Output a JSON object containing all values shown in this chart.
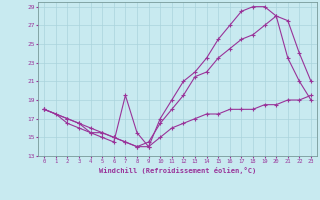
{
  "xlabel": "Windchill (Refroidissement éolien,°C)",
  "bg_color": "#c8eaf0",
  "line_color": "#993399",
  "grid_color": "#aad4dc",
  "xlim": [
    -0.5,
    23.5
  ],
  "ylim": [
    13,
    29.5
  ],
  "yticks": [
    13,
    15,
    17,
    19,
    21,
    23,
    25,
    27,
    29
  ],
  "xticks": [
    0,
    1,
    2,
    3,
    4,
    5,
    6,
    7,
    8,
    9,
    10,
    11,
    12,
    13,
    14,
    15,
    16,
    17,
    18,
    19,
    20,
    21,
    22,
    23
  ],
  "line1_x": [
    0,
    1,
    2,
    3,
    4,
    5,
    6,
    7,
    8,
    9,
    10,
    11,
    12,
    13,
    14,
    15,
    16,
    17,
    18,
    19,
    20,
    21,
    22,
    23
  ],
  "line1_y": [
    18.0,
    17.5,
    16.5,
    16.0,
    15.5,
    15.5,
    15.0,
    14.5,
    14.0,
    14.0,
    15.0,
    16.0,
    16.5,
    17.0,
    17.5,
    17.5,
    18.0,
    18.0,
    18.0,
    18.5,
    18.5,
    19.0,
    19.0,
    19.5
  ],
  "line2_x": [
    0,
    2,
    3,
    4,
    5,
    6,
    7,
    8,
    9,
    10,
    11,
    12,
    13,
    14,
    15,
    16,
    17,
    18,
    19,
    20,
    21,
    22,
    23
  ],
  "line2_y": [
    18.0,
    17.0,
    16.5,
    15.5,
    15.0,
    14.5,
    19.5,
    15.5,
    14.0,
    17.0,
    19.0,
    21.0,
    22.0,
    23.5,
    25.5,
    27.0,
    28.5,
    29.0,
    29.0,
    28.0,
    23.5,
    21.0,
    19.0
  ],
  "line3_x": [
    0,
    2,
    3,
    4,
    5,
    6,
    7,
    8,
    9,
    10,
    11,
    12,
    13,
    14,
    15,
    16,
    17,
    18,
    19,
    20,
    21,
    22,
    23
  ],
  "line3_y": [
    18.0,
    17.0,
    16.5,
    16.0,
    15.5,
    15.0,
    14.5,
    14.0,
    14.5,
    16.5,
    18.0,
    19.5,
    21.5,
    22.0,
    23.5,
    24.5,
    25.5,
    26.0,
    27.0,
    28.0,
    27.5,
    24.0,
    21.0
  ]
}
